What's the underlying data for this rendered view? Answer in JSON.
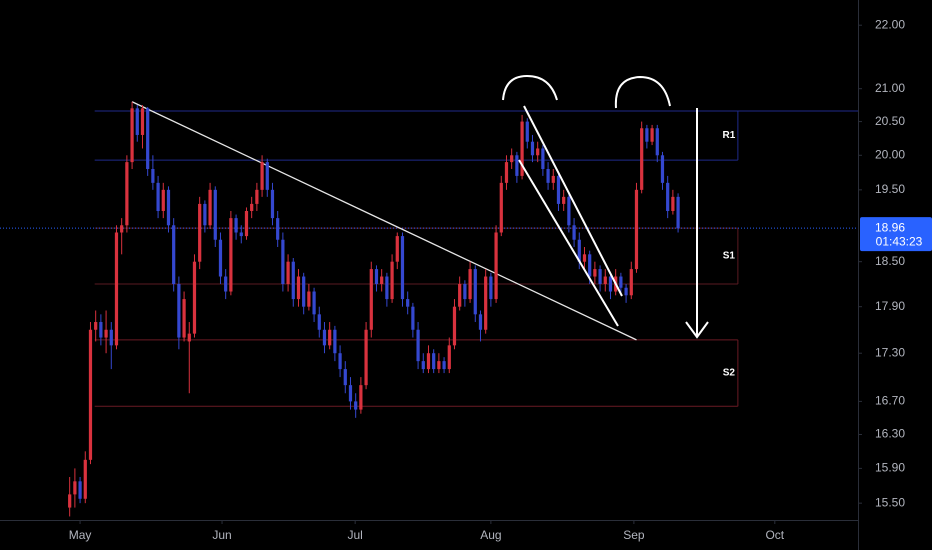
{
  "chart_data": {
    "type": "candlestick",
    "log_scale": true,
    "up_color": "#d9323e",
    "down_color": "#3548d0",
    "ylim": [
      15.31,
      22.41
    ],
    "yticks": [
      {
        "value": 22,
        "label": "22.00"
      },
      {
        "value": 21,
        "label": "21.00"
      },
      {
        "value": 20.5,
        "label": "20.50"
      },
      {
        "value": 20,
        "label": "20.00"
      },
      {
        "value": 19.5,
        "label": "19.50"
      },
      {
        "value": 18.5,
        "label": "18.50"
      },
      {
        "value": 17.9,
        "label": "17.90"
      },
      {
        "value": 17.3,
        "label": "17.30"
      },
      {
        "value": 16.7,
        "label": "16.70"
      },
      {
        "value": 16.3,
        "label": "16.30"
      },
      {
        "value": 15.9,
        "label": "15.90"
      },
      {
        "value": 15.5,
        "label": "15.50"
      }
    ],
    "xlim": [
      -15.4,
      149.6
    ],
    "xticks": [
      {
        "value": 0,
        "label": "May"
      },
      {
        "value": 27.3,
        "label": "Jun"
      },
      {
        "value": 52.9,
        "label": "Jul"
      },
      {
        "value": 79,
        "label": "Aug"
      },
      {
        "value": 106.5,
        "label": "Sep"
      },
      {
        "value": 133.6,
        "label": "Oct"
      }
    ],
    "x": [
      -2,
      -1,
      0,
      1,
      2,
      3,
      4,
      5,
      6,
      7,
      8,
      9,
      10,
      11,
      12,
      13,
      14,
      15,
      16,
      17,
      18,
      19,
      20,
      21,
      22,
      23,
      24,
      25,
      26,
      27,
      28,
      29,
      30,
      31,
      32,
      33,
      34,
      35,
      36,
      37,
      38,
      39,
      40,
      41,
      42,
      43,
      44,
      45,
      46,
      47,
      48,
      49,
      50,
      51,
      52,
      53,
      54,
      55,
      56,
      57,
      58,
      59,
      60,
      61,
      62,
      63,
      64,
      65,
      66,
      67,
      68,
      69,
      70,
      71,
      72,
      73,
      74,
      75,
      76,
      77,
      78,
      79,
      80,
      81,
      82,
      83,
      84,
      85,
      86,
      87,
      88,
      89,
      90,
      91,
      92,
      93,
      94,
      95,
      96,
      97,
      98,
      99,
      100,
      101,
      102,
      103,
      104,
      105,
      106,
      107,
      108,
      109,
      110,
      111,
      112,
      113,
      114,
      115
    ],
    "ohlc": [
      [
        15.45,
        15.8,
        15.35,
        15.6
      ],
      [
        15.6,
        15.9,
        15.45,
        15.75
      ],
      [
        15.75,
        15.8,
        15.5,
        15.55
      ],
      [
        15.55,
        16.1,
        15.5,
        16.0
      ],
      [
        16.0,
        17.7,
        15.95,
        17.6
      ],
      [
        17.6,
        17.85,
        17.45,
        17.7
      ],
      [
        17.7,
        17.8,
        17.4,
        17.5
      ],
      [
        17.5,
        17.85,
        17.3,
        17.6
      ],
      [
        17.6,
        17.7,
        17.1,
        17.4
      ],
      [
        17.4,
        19.0,
        17.35,
        18.9
      ],
      [
        18.9,
        19.1,
        18.6,
        19.0
      ],
      [
        19.0,
        20.0,
        18.9,
        19.9
      ],
      [
        19.9,
        20.8,
        19.8,
        20.7
      ],
      [
        20.7,
        20.75,
        20.2,
        20.3
      ],
      [
        20.3,
        20.75,
        20.1,
        20.7
      ],
      [
        20.7,
        20.72,
        19.7,
        19.8
      ],
      [
        19.8,
        20.0,
        19.5,
        19.6
      ],
      [
        19.6,
        19.7,
        19.1,
        19.2
      ],
      [
        19.2,
        19.6,
        19.1,
        19.5
      ],
      [
        19.5,
        19.55,
        18.9,
        19.0
      ],
      [
        19.0,
        19.1,
        18.1,
        18.2
      ],
      [
        18.2,
        18.3,
        17.35,
        17.5
      ],
      [
        17.5,
        18.1,
        17.45,
        18.0
      ],
      [
        17.45,
        17.7,
        16.8,
        17.55
      ],
      [
        17.55,
        18.6,
        17.5,
        18.5
      ],
      [
        18.5,
        19.4,
        18.4,
        19.3
      ],
      [
        19.3,
        19.35,
        18.9,
        19.0
      ],
      [
        19.0,
        19.6,
        18.95,
        19.5
      ],
      [
        19.5,
        19.55,
        18.7,
        18.8
      ],
      [
        18.8,
        18.9,
        18.2,
        18.3
      ],
      [
        18.3,
        18.4,
        18.0,
        18.1
      ],
      [
        18.1,
        19.2,
        18.05,
        19.1
      ],
      [
        19.1,
        19.15,
        18.8,
        18.9
      ],
      [
        18.9,
        19.0,
        18.75,
        18.85
      ],
      [
        18.85,
        19.25,
        18.8,
        19.2
      ],
      [
        19.2,
        19.4,
        19.1,
        19.3
      ],
      [
        19.3,
        19.6,
        19.2,
        19.5
      ],
      [
        19.5,
        20.0,
        19.4,
        19.9
      ],
      [
        19.9,
        19.95,
        19.4,
        19.5
      ],
      [
        19.5,
        19.6,
        19.0,
        19.1
      ],
      [
        19.1,
        19.2,
        18.7,
        18.8
      ],
      [
        18.8,
        18.9,
        18.1,
        18.2
      ],
      [
        18.2,
        18.6,
        18.1,
        18.5
      ],
      [
        18.5,
        18.55,
        17.9,
        18.0
      ],
      [
        18.0,
        18.4,
        17.9,
        18.3
      ],
      [
        18.3,
        18.35,
        17.8,
        17.9
      ],
      [
        17.9,
        18.2,
        17.85,
        18.1
      ],
      [
        18.1,
        18.15,
        17.7,
        17.8
      ],
      [
        17.8,
        17.9,
        17.5,
        17.6
      ],
      [
        17.6,
        17.7,
        17.3,
        17.4
      ],
      [
        17.4,
        17.7,
        17.35,
        17.6
      ],
      [
        17.6,
        17.65,
        17.2,
        17.3
      ],
      [
        17.3,
        17.4,
        17.0,
        17.1
      ],
      [
        17.1,
        17.2,
        16.8,
        16.9
      ],
      [
        16.9,
        17.0,
        16.6,
        16.7
      ],
      [
        16.7,
        16.8,
        16.5,
        16.6
      ],
      [
        16.6,
        17.0,
        16.55,
        16.9
      ],
      [
        16.9,
        17.7,
        16.85,
        17.6
      ],
      [
        17.6,
        18.5,
        17.5,
        18.4
      ],
      [
        18.4,
        18.45,
        18.1,
        18.2
      ],
      [
        18.2,
        18.4,
        18.1,
        18.3
      ],
      [
        18.3,
        18.35,
        17.9,
        18.0
      ],
      [
        18.0,
        18.6,
        17.95,
        18.5
      ],
      [
        18.5,
        18.9,
        18.4,
        18.85
      ],
      [
        18.85,
        18.9,
        17.9,
        18.0
      ],
      [
        18.0,
        18.1,
        17.8,
        17.9
      ],
      [
        17.9,
        17.95,
        17.5,
        17.6
      ],
      [
        17.6,
        17.7,
        17.1,
        17.2
      ],
      [
        17.2,
        17.3,
        17.05,
        17.1
      ],
      [
        17.1,
        17.4,
        17.05,
        17.3
      ],
      [
        17.3,
        17.35,
        17.05,
        17.1
      ],
      [
        17.1,
        17.3,
        17.05,
        17.2
      ],
      [
        17.2,
        17.25,
        17.05,
        17.1
      ],
      [
        17.1,
        17.5,
        17.05,
        17.4
      ],
      [
        17.4,
        18.0,
        17.35,
        17.9
      ],
      [
        17.9,
        18.3,
        17.85,
        18.2
      ],
      [
        18.2,
        18.25,
        17.9,
        18.0
      ],
      [
        18.0,
        18.5,
        17.95,
        18.4
      ],
      [
        18.4,
        18.45,
        17.7,
        17.8
      ],
      [
        17.8,
        17.85,
        17.45,
        17.6
      ],
      [
        17.6,
        18.4,
        17.55,
        18.3
      ],
      [
        18.3,
        18.35,
        17.9,
        18.0
      ],
      [
        18.0,
        19.0,
        17.95,
        18.9
      ],
      [
        18.9,
        19.7,
        18.85,
        19.6
      ],
      [
        19.6,
        20.0,
        19.5,
        19.9
      ],
      [
        19.9,
        20.1,
        19.8,
        20.0
      ],
      [
        20.0,
        20.05,
        19.6,
        19.7
      ],
      [
        19.7,
        20.6,
        19.65,
        20.5
      ],
      [
        20.5,
        20.55,
        20.1,
        20.2
      ],
      [
        20.2,
        20.3,
        19.9,
        20.0
      ],
      [
        20.0,
        20.2,
        19.9,
        20.1
      ],
      [
        20.1,
        20.15,
        19.7,
        19.8
      ],
      [
        19.8,
        19.9,
        19.5,
        19.6
      ],
      [
        19.6,
        19.8,
        19.5,
        19.7
      ],
      [
        19.7,
        19.75,
        19.2,
        19.3
      ],
      [
        19.3,
        19.5,
        19.2,
        19.4
      ],
      [
        19.4,
        19.45,
        18.9,
        19.0
      ],
      [
        19.0,
        19.1,
        18.7,
        18.8
      ],
      [
        18.8,
        18.9,
        18.4,
        18.5
      ],
      [
        18.5,
        18.7,
        18.4,
        18.6
      ],
      [
        18.6,
        18.65,
        18.2,
        18.3
      ],
      [
        18.3,
        18.5,
        18.2,
        18.4
      ],
      [
        18.4,
        18.45,
        18.1,
        18.2
      ],
      [
        18.2,
        18.4,
        18.1,
        18.3
      ],
      [
        18.3,
        18.35,
        18.0,
        18.1
      ],
      [
        18.1,
        18.4,
        18.05,
        18.3
      ],
      [
        18.3,
        18.35,
        18.05,
        18.15
      ],
      [
        18.15,
        18.2,
        17.95,
        18.05
      ],
      [
        18.05,
        18.5,
        18.0,
        18.4
      ],
      [
        18.4,
        19.6,
        18.35,
        19.5
      ],
      [
        19.5,
        20.5,
        19.45,
        20.4
      ],
      [
        20.4,
        20.45,
        20.1,
        20.2
      ],
      [
        20.2,
        20.45,
        20.15,
        20.4
      ],
      [
        20.4,
        20.45,
        19.9,
        20.0
      ],
      [
        20.0,
        20.05,
        19.5,
        19.6
      ],
      [
        19.6,
        19.7,
        19.1,
        19.2
      ],
      [
        19.2,
        19.5,
        19.15,
        19.4
      ],
      [
        19.4,
        19.45,
        18.9,
        18.96
      ]
    ],
    "zones": [
      {
        "label": "R1",
        "top": 20.66,
        "bottom": 19.93,
        "color": "#1f2a8a"
      },
      {
        "label": "S1",
        "top": 18.96,
        "bottom": 18.2,
        "color": "#5a1a22"
      },
      {
        "label": "S2",
        "top": 17.47,
        "bottom": 16.64,
        "color": "#6a1a24"
      }
    ],
    "zone_end_x": 126.5,
    "trendline": {
      "x": [
        10,
        107
      ],
      "y": [
        20.8,
        17.47
      ]
    },
    "last_price": 18.96,
    "countdown": "01:43:23"
  }
}
